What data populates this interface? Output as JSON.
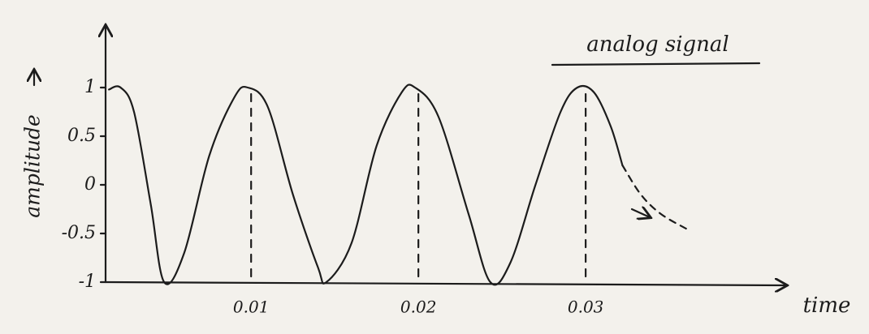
{
  "chart_data": {
    "type": "line",
    "title": "analog signal",
    "x_label": "time",
    "y_label": "amplitude",
    "x": [
      0.0015,
      0.0022,
      0.003,
      0.004,
      0.0048,
      0.006,
      0.0075,
      0.009,
      0.0098,
      0.011,
      0.0125,
      0.014,
      0.0145,
      0.016,
      0.0175,
      0.019,
      0.0198,
      0.0212,
      0.023,
      0.0243,
      0.0255,
      0.027,
      0.0285,
      0.0295,
      0.0305,
      0.0315,
      0.0322
    ],
    "series": [
      {
        "color": "#1c1c1c",
        "style": "solid",
        "x": [
          0.0015,
          0.0022,
          0.003,
          0.004,
          0.0048,
          0.006,
          0.0075,
          0.009,
          0.0098,
          0.011,
          0.0125,
          0.014,
          0.0145,
          0.016,
          0.0175,
          0.019,
          0.0198,
          0.0212,
          0.023,
          0.0243,
          0.0255,
          0.027,
          0.0285,
          0.0295,
          0.0305,
          0.0315,
          0.0322
        ],
        "values": [
          0.98,
          1,
          0.75,
          -0.2,
          -1,
          -0.7,
          0.3,
          0.9,
          1,
          0.8,
          -0.1,
          -0.85,
          -1,
          -0.6,
          0.4,
          0.95,
          1,
          0.7,
          -0.3,
          -1,
          -0.8,
          0,
          0.75,
          1,
          0.95,
          0.6,
          0.2
        ]
      },
      {
        "color": "#1c1c1c",
        "style": "dashed",
        "x": [
          0.0322,
          0.0333,
          0.0345,
          0.036
        ],
        "values": [
          0.2,
          -0.1,
          -0.3,
          -0.45
        ]
      }
    ],
    "xlim": [
      0.0013,
      0.0415
    ],
    "ylim": [
      -1,
      1.65
    ],
    "xticks": [
      0.01,
      0.02,
      0.03
    ],
    "yticks": [
      -1,
      -0.5,
      0,
      0.5,
      1
    ],
    "grid": "dashed"
  }
}
